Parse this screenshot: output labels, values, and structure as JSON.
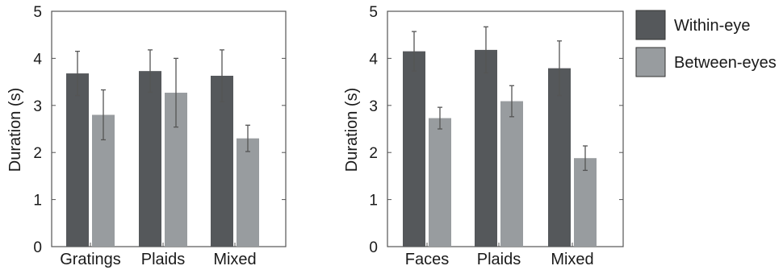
{
  "chart_data": [
    {
      "type": "bar",
      "ylabel": "Duration (s)",
      "ylim": [
        0,
        5
      ],
      "yticks": [
        "0",
        "1",
        "2",
        "3",
        "4",
        "5"
      ],
      "categories": [
        "Gratings",
        "Plaids",
        "Mixed"
      ],
      "series": [
        {
          "name": "Within-eye",
          "values": [
            3.68,
            3.73,
            3.63
          ],
          "errors": [
            0.47,
            0.45,
            0.55
          ]
        },
        {
          "name": "Between-eyes",
          "values": [
            2.8,
            3.27,
            2.3
          ],
          "errors": [
            0.53,
            0.73,
            0.28
          ]
        }
      ],
      "grid": false
    },
    {
      "type": "bar",
      "ylabel": "Duration (s)",
      "ylim": [
        0,
        5
      ],
      "yticks": [
        "0",
        "1",
        "2",
        "3",
        "4",
        "5"
      ],
      "categories": [
        "Faces",
        "Plaids",
        "Mixed"
      ],
      "series": [
        {
          "name": "Within-eye",
          "values": [
            4.15,
            4.18,
            3.79
          ],
          "errors": [
            0.42,
            0.49,
            0.58
          ]
        },
        {
          "name": "Between-eyes",
          "values": [
            2.73,
            3.09,
            1.88
          ],
          "errors": [
            0.23,
            0.33,
            0.26
          ]
        }
      ],
      "grid": false
    }
  ],
  "legend": {
    "placement": "right",
    "entries": [
      {
        "label": "Within-eye",
        "color": "#55585b"
      },
      {
        "label": "Between-eyes",
        "color": "#989c9f"
      }
    ]
  },
  "colors": {
    "within": "#55585b",
    "between": "#989c9f",
    "error_bar": "#555555"
  }
}
